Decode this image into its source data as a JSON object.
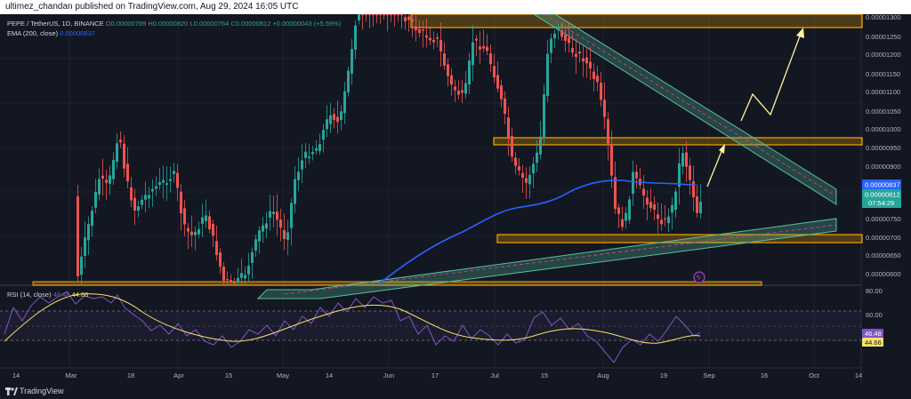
{
  "header": {
    "publisher_line": "ultimez_chandan published on TradingView.com, Aug 29, 2024 16:05 UTC"
  },
  "legend": {
    "symbol": "PEPE / TetherUS, 1D, BINANCE",
    "o_label": "O",
    "o_value": "0.00000769",
    "h_label": "H",
    "h_value": "0.00000820",
    "l_label": "L",
    "l_value": "0.00000764",
    "c_label": "C",
    "c_value": "0.00000812",
    "change": "+0.00000043 (+5.59%)",
    "ema_label": "EMA (200, close)",
    "ema_value": "0.00000837"
  },
  "rsi_legend": {
    "label": "RSI (14, close)",
    "value1": "46.48",
    "value2": "44.66"
  },
  "price_axis": {
    "ticks": [
      "0.00001300",
      "0.00001250",
      "0.00001200",
      "0.00001150",
      "0.00001100",
      "0.00001050",
      "0.00001000",
      "0.00000950",
      "0.00000900",
      "0.00000850",
      "0.00000750",
      "0.00000700",
      "0.00000650",
      "0.00000600"
    ],
    "ema_tag": "0.00000837",
    "close_tag": "0.00000812",
    "countdown": "07:54:29"
  },
  "rsi_axis": {
    "ticks": [
      "80.00",
      "60.00"
    ],
    "tag1": "46.48",
    "tag2": "44.66"
  },
  "time_axis": [
    "14",
    "Mar",
    "18",
    "Apr",
    "15",
    "May",
    "14",
    "Jun",
    "17",
    "Jul",
    "15",
    "Aug",
    "19",
    "Sep",
    "16",
    "Oct",
    "14"
  ],
  "footer": {
    "brand": "TradingView"
  },
  "colors": {
    "up": "#26a69a",
    "down": "#ef5350",
    "ema": "#2962ff",
    "rsi": "#7e57c2",
    "rsi_ma": "#f9e36a",
    "zone": "#f7a600",
    "channel": "#5bbfa0",
    "arrow": "#fff59d"
  }
}
